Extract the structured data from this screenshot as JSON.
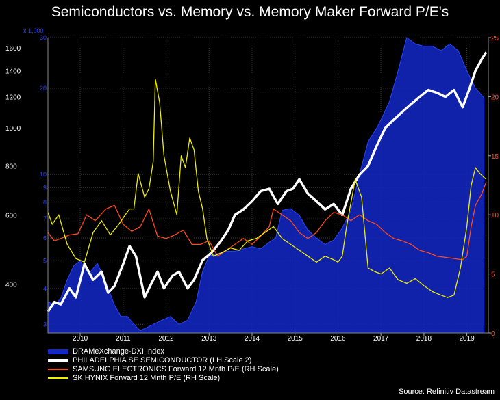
{
  "chart_data": {
    "type": "line",
    "title": "Semiconductors vs. Memory vs. Memory Maker Forward P/E's",
    "source": "Source: Refinitiv Datastream",
    "x_axis": {
      "range": [
        2009.25,
        2019.5
      ],
      "tick_labels": [
        "2010",
        "2011",
        "2012",
        "2013",
        "2014",
        "2015",
        "2016",
        "2017",
        "2018",
        "2019"
      ],
      "tick_values": [
        2010,
        2011,
        2012,
        2013,
        2014,
        2015,
        2016,
        2017,
        2018,
        2019
      ]
    },
    "left_outer_axis": {
      "scale": "log",
      "range": [
        300,
        1700
      ],
      "ticks": [
        400,
        600,
        800,
        1000,
        1200,
        1400,
        1600
      ],
      "tick_labels": [
        "400",
        "600",
        "800",
        "1000",
        "1200",
        "1400",
        "1600"
      ],
      "color": "#ffffff"
    },
    "left_inner_axis": {
      "scale": "log",
      "multiplier_label": "x 1,000",
      "range": [
        2.8,
        30
      ],
      "ticks": [
        3,
        4,
        5,
        6,
        7,
        8,
        9,
        10,
        20,
        30
      ],
      "tick_labels": [
        "3",
        "4",
        "5",
        "6",
        "7",
        "8",
        "9",
        "10",
        "20",
        "30"
      ],
      "color": "#2b3fff"
    },
    "right_axis": {
      "scale": "linear",
      "range": [
        0,
        25
      ],
      "ticks": [
        0,
        5,
        10,
        15,
        20,
        25
      ],
      "tick_labels": [
        "0",
        "5",
        "10",
        "15",
        "20",
        "25"
      ],
      "color": "#ff4a1a"
    },
    "series": [
      {
        "name": "DRAMeXchange-DXI Index",
        "axis": "left_inner",
        "style": "area",
        "color": "#1428c8",
        "x": [
          2009.25,
          2009.4,
          2009.55,
          2009.7,
          2009.85,
          2010.0,
          2010.2,
          2010.4,
          2010.6,
          2010.8,
          2010.95,
          2011.1,
          2011.25,
          2011.4,
          2011.5,
          2011.7,
          2011.9,
          2012.1,
          2012.3,
          2012.5,
          2012.7,
          2012.85,
          2013.0,
          2013.2,
          2013.4,
          2013.6,
          2013.8,
          2014.0,
          2014.2,
          2014.4,
          2014.55,
          2014.7,
          2014.9,
          2015.1,
          2015.3,
          2015.5,
          2015.7,
          2015.9,
          2016.1,
          2016.3,
          2016.5,
          2016.7,
          2016.9,
          2017.0,
          2017.2,
          2017.4,
          2017.6,
          2017.8,
          2018.0,
          2018.2,
          2018.4,
          2018.6,
          2018.8,
          2019.0,
          2019.2,
          2019.4
        ],
        "values": [
          3.6,
          3.5,
          3.7,
          4.3,
          4.8,
          5.0,
          4.5,
          4.9,
          4.2,
          3.5,
          3.2,
          3.2,
          3.0,
          2.85,
          2.9,
          3.0,
          3.1,
          3.2,
          3.0,
          3.1,
          3.6,
          4.6,
          5.2,
          5.3,
          5.4,
          5.4,
          5.5,
          5.6,
          5.5,
          5.8,
          6.0,
          7.5,
          7.6,
          7.2,
          6.4,
          6.0,
          5.7,
          5.9,
          6.5,
          7.5,
          10.0,
          13.0,
          14.5,
          15.5,
          18.0,
          23.0,
          30.0,
          28.5,
          28.0,
          28.0,
          27.0,
          28.5,
          27.0,
          23.0,
          20.0,
          18.5
        ]
      },
      {
        "name": "PHILADELPHIA SE SEMICONDUCTOR (LH Scale 2)",
        "axis": "left_outer",
        "style": "line",
        "color": "#ffffff",
        "x": [
          2009.25,
          2009.4,
          2009.55,
          2009.75,
          2009.9,
          2010.1,
          2010.3,
          2010.5,
          2010.65,
          2010.8,
          2011.0,
          2011.15,
          2011.3,
          2011.5,
          2011.65,
          2011.8,
          2011.95,
          2012.15,
          2012.3,
          2012.5,
          2012.65,
          2012.85,
          2013.05,
          2013.25,
          2013.45,
          2013.6,
          2013.8,
          2014.0,
          2014.2,
          2014.4,
          2014.6,
          2014.8,
          2014.95,
          2015.1,
          2015.3,
          2015.5,
          2015.7,
          2015.9,
          2016.1,
          2016.3,
          2016.5,
          2016.7,
          2016.9,
          2017.1,
          2017.3,
          2017.5,
          2017.7,
          2017.9,
          2018.1,
          2018.3,
          2018.5,
          2018.7,
          2018.9,
          2019.05,
          2019.2,
          2019.35,
          2019.45
        ],
        "values": [
          340,
          360,
          355,
          390,
          370,
          450,
          410,
          430,
          380,
          395,
          450,
          500,
          470,
          370,
          400,
          430,
          390,
          420,
          430,
          390,
          410,
          460,
          480,
          510,
          550,
          600,
          620,
          650,
          690,
          700,
          640,
          690,
          700,
          740,
          680,
          650,
          620,
          640,
          600,
          700,
          760,
          800,
          900,
          1000,
          1050,
          1100,
          1150,
          1200,
          1250,
          1230,
          1200,
          1250,
          1130,
          1250,
          1400,
          1500,
          1560
        ]
      },
      {
        "name": "SAMSUNG ELECTRONICS Forward 12 Mnth P/E (RH Scale)",
        "axis": "right",
        "style": "line",
        "color": "#ff4a1a",
        "x": [
          2009.25,
          2009.4,
          2009.55,
          2009.75,
          2009.95,
          2010.15,
          2010.35,
          2010.6,
          2010.8,
          2011.0,
          2011.2,
          2011.4,
          2011.6,
          2011.8,
          2012.0,
          2012.2,
          2012.4,
          2012.6,
          2012.8,
          2013.0,
          2013.2,
          2013.4,
          2013.6,
          2013.8,
          2014.0,
          2014.2,
          2014.4,
          2014.5,
          2014.7,
          2014.9,
          2015.1,
          2015.3,
          2015.5,
          2015.7,
          2015.9,
          2016.1,
          2016.3,
          2016.5,
          2016.7,
          2016.9,
          2017.1,
          2017.3,
          2017.5,
          2017.7,
          2017.9,
          2018.1,
          2018.3,
          2018.5,
          2018.7,
          2018.9,
          2019.0,
          2019.1,
          2019.2,
          2019.35,
          2019.45
        ],
        "values": [
          8.5,
          7.8,
          8.0,
          8.3,
          8.4,
          10.0,
          9.5,
          10.5,
          10.8,
          9.2,
          8.6,
          9.0,
          10.5,
          8.2,
          8.0,
          8.3,
          8.7,
          7.5,
          7.5,
          7.8,
          6.5,
          7.0,
          7.5,
          8.0,
          7.5,
          8.2,
          9.0,
          10.5,
          10.0,
          9.5,
          8.5,
          8.0,
          8.5,
          9.5,
          10.2,
          10.0,
          9.5,
          10.0,
          9.5,
          9.2,
          8.5,
          8.0,
          7.8,
          7.5,
          7.0,
          6.8,
          6.5,
          6.4,
          6.3,
          6.2,
          6.5,
          9.0,
          10.8,
          11.8,
          12.8
        ]
      },
      {
        "name": "SK HYNIX Forward 12 Mnth P/E (RH Scale)",
        "axis": "right",
        "style": "line",
        "color": "#f0f000",
        "x": [
          2009.25,
          2009.35,
          2009.5,
          2009.7,
          2009.9,
          2010.1,
          2010.3,
          2010.5,
          2010.7,
          2010.9,
          2011.05,
          2011.15,
          2011.25,
          2011.35,
          2011.5,
          2011.6,
          2011.7,
          2011.75,
          2011.85,
          2011.95,
          2012.1,
          2012.25,
          2012.35,
          2012.45,
          2012.55,
          2012.65,
          2012.75,
          2012.85,
          2012.95,
          2013.1,
          2013.3,
          2013.5,
          2013.7,
          2013.9,
          2014.1,
          2014.3,
          2014.5,
          2014.7,
          2014.9,
          2015.1,
          2015.3,
          2015.5,
          2015.7,
          2015.9,
          2016.0,
          2016.1,
          2016.2,
          2016.3,
          2016.4,
          2016.55,
          2016.7,
          2016.85,
          2017.0,
          2017.2,
          2017.4,
          2017.6,
          2017.8,
          2018.0,
          2018.2,
          2018.4,
          2018.55,
          2018.7,
          2018.85,
          2019.0,
          2019.1,
          2019.2,
          2019.3,
          2019.45
        ],
        "values": [
          10.2,
          9.2,
          10.0,
          7.5,
          6.3,
          6.0,
          8.5,
          9.5,
          8.3,
          9.2,
          10.0,
          10.5,
          10.5,
          13.5,
          11.5,
          12.2,
          14.5,
          21.5,
          19.5,
          15.0,
          12.0,
          10.0,
          15.0,
          14.0,
          16.5,
          15.5,
          12.0,
          10.5,
          8.0,
          6.5,
          6.8,
          7.2,
          7.0,
          7.8,
          8.0,
          8.5,
          9.0,
          8.0,
          7.5,
          7.0,
          6.5,
          6.0,
          6.5,
          6.2,
          6.0,
          6.5,
          9.0,
          11.0,
          13.0,
          11.5,
          5.5,
          5.2,
          5.0,
          5.5,
          4.5,
          4.2,
          4.6,
          4.0,
          3.5,
          3.2,
          3.0,
          3.2,
          5.5,
          9.0,
          12.5,
          14.0,
          13.5,
          13.0
        ]
      }
    ]
  }
}
